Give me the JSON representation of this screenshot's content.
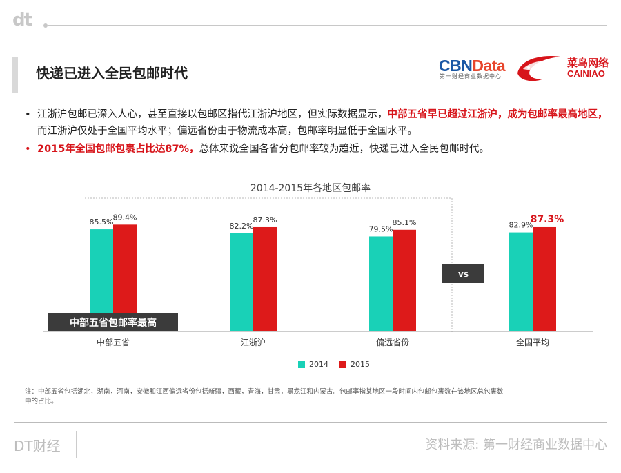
{
  "header": {
    "logo": "dt",
    "title": "快递已进入全民包邮时代"
  },
  "brands": {
    "cbn_part1": "CBN",
    "cbn_part2": "Data",
    "cbn_sub": "第一财经商业数据中心",
    "cainiao_cn": "菜鸟网络",
    "cainiao_en": "CAINIAO",
    "color_cbn_blue": "#1a57a4",
    "color_cbn_orange": "#e8462d",
    "color_cainiao_red": "#d7141a"
  },
  "bullets": [
    {
      "parts": [
        {
          "text": "江浙沪包邮已深入人心，甚至直接以包邮区指代江浙沪地区，但实际数据显示，",
          "em": false
        },
        {
          "text": "中部五省早已超过江浙沪，成为包邮率最高地区，",
          "em": true
        },
        {
          "text": "而江浙沪仅处于全国平均水平；偏远省份由于物流成本高，包邮率明显低于全国水平。",
          "em": false
        }
      ]
    },
    {
      "parts": [
        {
          "text": "2015年全国包邮包裹占比达87%，",
          "em": true
        },
        {
          "text": "总体来说全国各省分包邮率较为趋近，快递已进入全民包邮时代。",
          "em": false
        }
      ]
    }
  ],
  "chart_data": {
    "type": "bar",
    "title": "2014-2015年各地区包邮率",
    "categories": [
      "中部五省",
      "江浙沪",
      "偏远省份",
      "全国平均"
    ],
    "series": [
      {
        "name": "2014",
        "values": [
          85.5,
          82.2,
          79.5,
          82.9
        ],
        "labels": [
          "85.5%",
          "82.2%",
          "79.5%",
          "82.9%"
        ],
        "color": "#19d1b7"
      },
      {
        "name": "2015",
        "values": [
          89.4,
          87.3,
          85.1,
          87.3
        ],
        "labels": [
          "89.4%",
          "87.3%",
          "85.1%",
          "87.3%"
        ],
        "color": "#dd1a1a"
      }
    ],
    "highlight_label": "87.3%",
    "callout": "中部五省包邮率最高",
    "vs_label": "vs",
    "ylim": [
      0,
      100
    ],
    "legend": "bottom-center",
    "grid": false
  },
  "footnote": "注：中部五省包括湖北，湖南，河南，安徽和江西偏远省份包括新疆，西藏，青海，甘肃，黑龙江和内蒙古。包邮率指某地区一段时间内包邮包裹数在该地区总包裹数中的占比。",
  "footer": {
    "left": "DT财经",
    "right": "资料来源: 第一财经商业数据中心"
  }
}
